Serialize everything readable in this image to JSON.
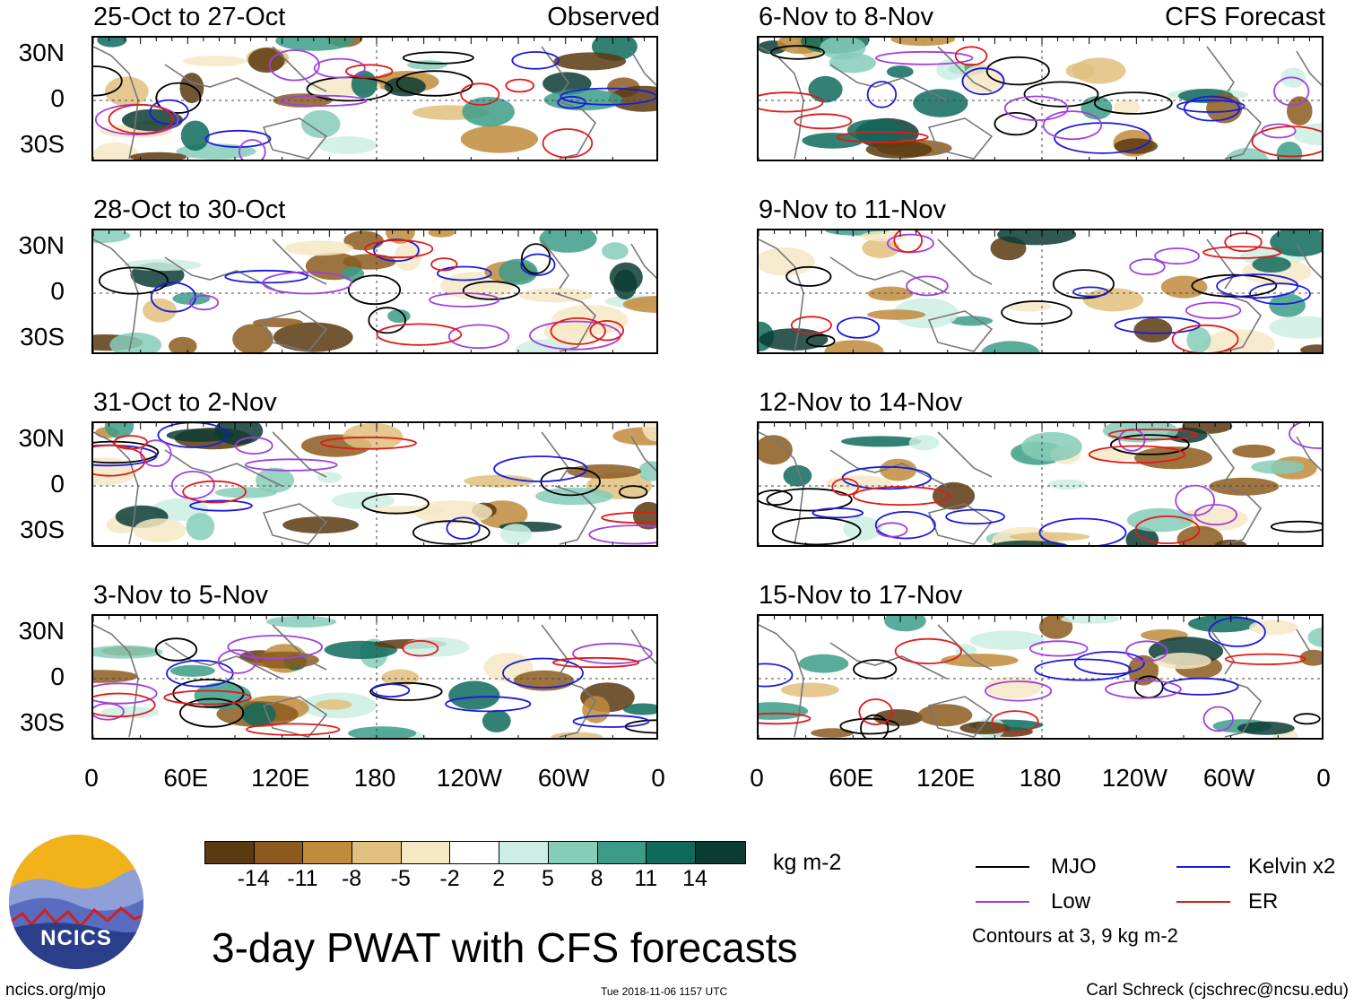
{
  "panels": [
    {
      "title": "25-Oct to 27-Oct",
      "tag": "Observed"
    },
    {
      "title": "28-Oct to 30-Oct",
      "tag": ""
    },
    {
      "title": "31-Oct to 2-Nov",
      "tag": ""
    },
    {
      "title": "3-Nov to 5-Nov",
      "tag": ""
    },
    {
      "title": "6-Nov to 8-Nov",
      "tag": "CFS Forecast"
    },
    {
      "title": "9-Nov to 11-Nov",
      "tag": ""
    },
    {
      "title": "12-Nov to 14-Nov",
      "tag": ""
    },
    {
      "title": "15-Nov to 17-Nov",
      "tag": ""
    }
  ],
  "y_axis": [
    "30N",
    "0",
    "30S"
  ],
  "x_axis": [
    "0",
    "60E",
    "120E",
    "180",
    "120W",
    "60W",
    "0"
  ],
  "colorbar": {
    "units": "kg m-2",
    "ticks": [
      "-14",
      "-11",
      "-8",
      "-5",
      "-2",
      "2",
      "5",
      "8",
      "11",
      "14"
    ],
    "colors": [
      "#5a3a10",
      "#8c5a1e",
      "#bf8c3c",
      "#e0c07c",
      "#f6e8c4",
      "#ffffff",
      "#cdeee4",
      "#86cdb8",
      "#3c9c88",
      "#0f6a5c",
      "#0a3c34"
    ]
  },
  "title": "3-day PWAT with CFS forecasts",
  "legend": {
    "items": [
      {
        "label": "MJO",
        "color": "#000000"
      },
      {
        "label": "Kelvin x2",
        "color": "#1a1adc"
      },
      {
        "label": "Low",
        "color": "#a040e0"
      },
      {
        "label": "ER",
        "color": "#e01a1a"
      }
    ],
    "note": "Contours at 3, 9 kg m-2"
  },
  "footer": {
    "left": "ncics.org/mjo",
    "center": "Tue 2018-11-06 1157 UTC",
    "right": "Carl Schreck (cjschrec@ncsu.edu)"
  },
  "logo": {
    "text": "NCICS"
  }
}
